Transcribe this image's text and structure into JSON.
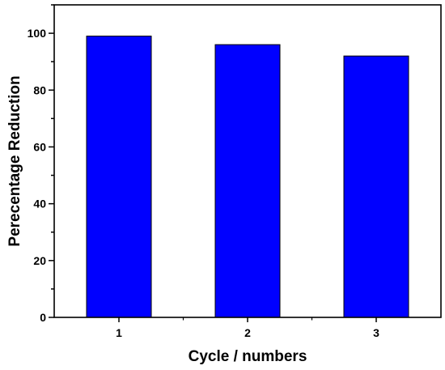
{
  "chart_data": {
    "type": "bar",
    "title": "",
    "xlabel": "Cycle / numbers",
    "ylabel": "Perecentage  Reduction",
    "categories": [
      "1",
      "2",
      "3"
    ],
    "values": [
      99,
      96,
      92
    ],
    "ylim": [
      0,
      110
    ],
    "yticks": [
      0,
      20,
      40,
      60,
      80,
      100
    ],
    "ytick_labels": [
      "0",
      "20",
      "40",
      "60",
      "80",
      "100"
    ],
    "bar_color": "#0000ff",
    "bar_edge_color": "#000000",
    "grid": false,
    "legend": "none"
  }
}
